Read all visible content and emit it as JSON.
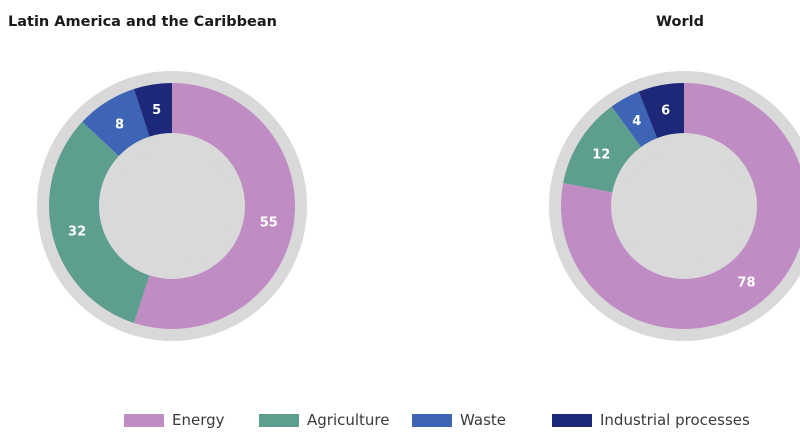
{
  "chart_data": [
    {
      "type": "donut",
      "title": "Latin America and the Caribbean",
      "categories": [
        "Energy",
        "Agriculture",
        "Waste",
        "Industrial processes"
      ],
      "values": [
        55,
        32,
        8,
        5
      ],
      "labels": [
        "55",
        "32",
        "8",
        "5"
      ]
    },
    {
      "type": "donut",
      "title": "World",
      "categories": [
        "Energy",
        "Agriculture",
        "Waste",
        "Industrial processes"
      ],
      "values": [
        78,
        12,
        4,
        6
      ],
      "labels": [
        "78",
        "12",
        "4",
        "6"
      ]
    }
  ],
  "legend": {
    "placement": "bottom",
    "items": [
      {
        "label": "Energy",
        "color": "#c08cc4"
      },
      {
        "label": "Agriculture",
        "color": "#5e9e8f"
      },
      {
        "label": "Waste",
        "color": "#3e64b5"
      },
      {
        "label": "Industrial processes",
        "color": "#1e2878"
      }
    ]
  },
  "colors": {
    "ring": "#d9d9d9",
    "label_text": "#ffffff"
  }
}
